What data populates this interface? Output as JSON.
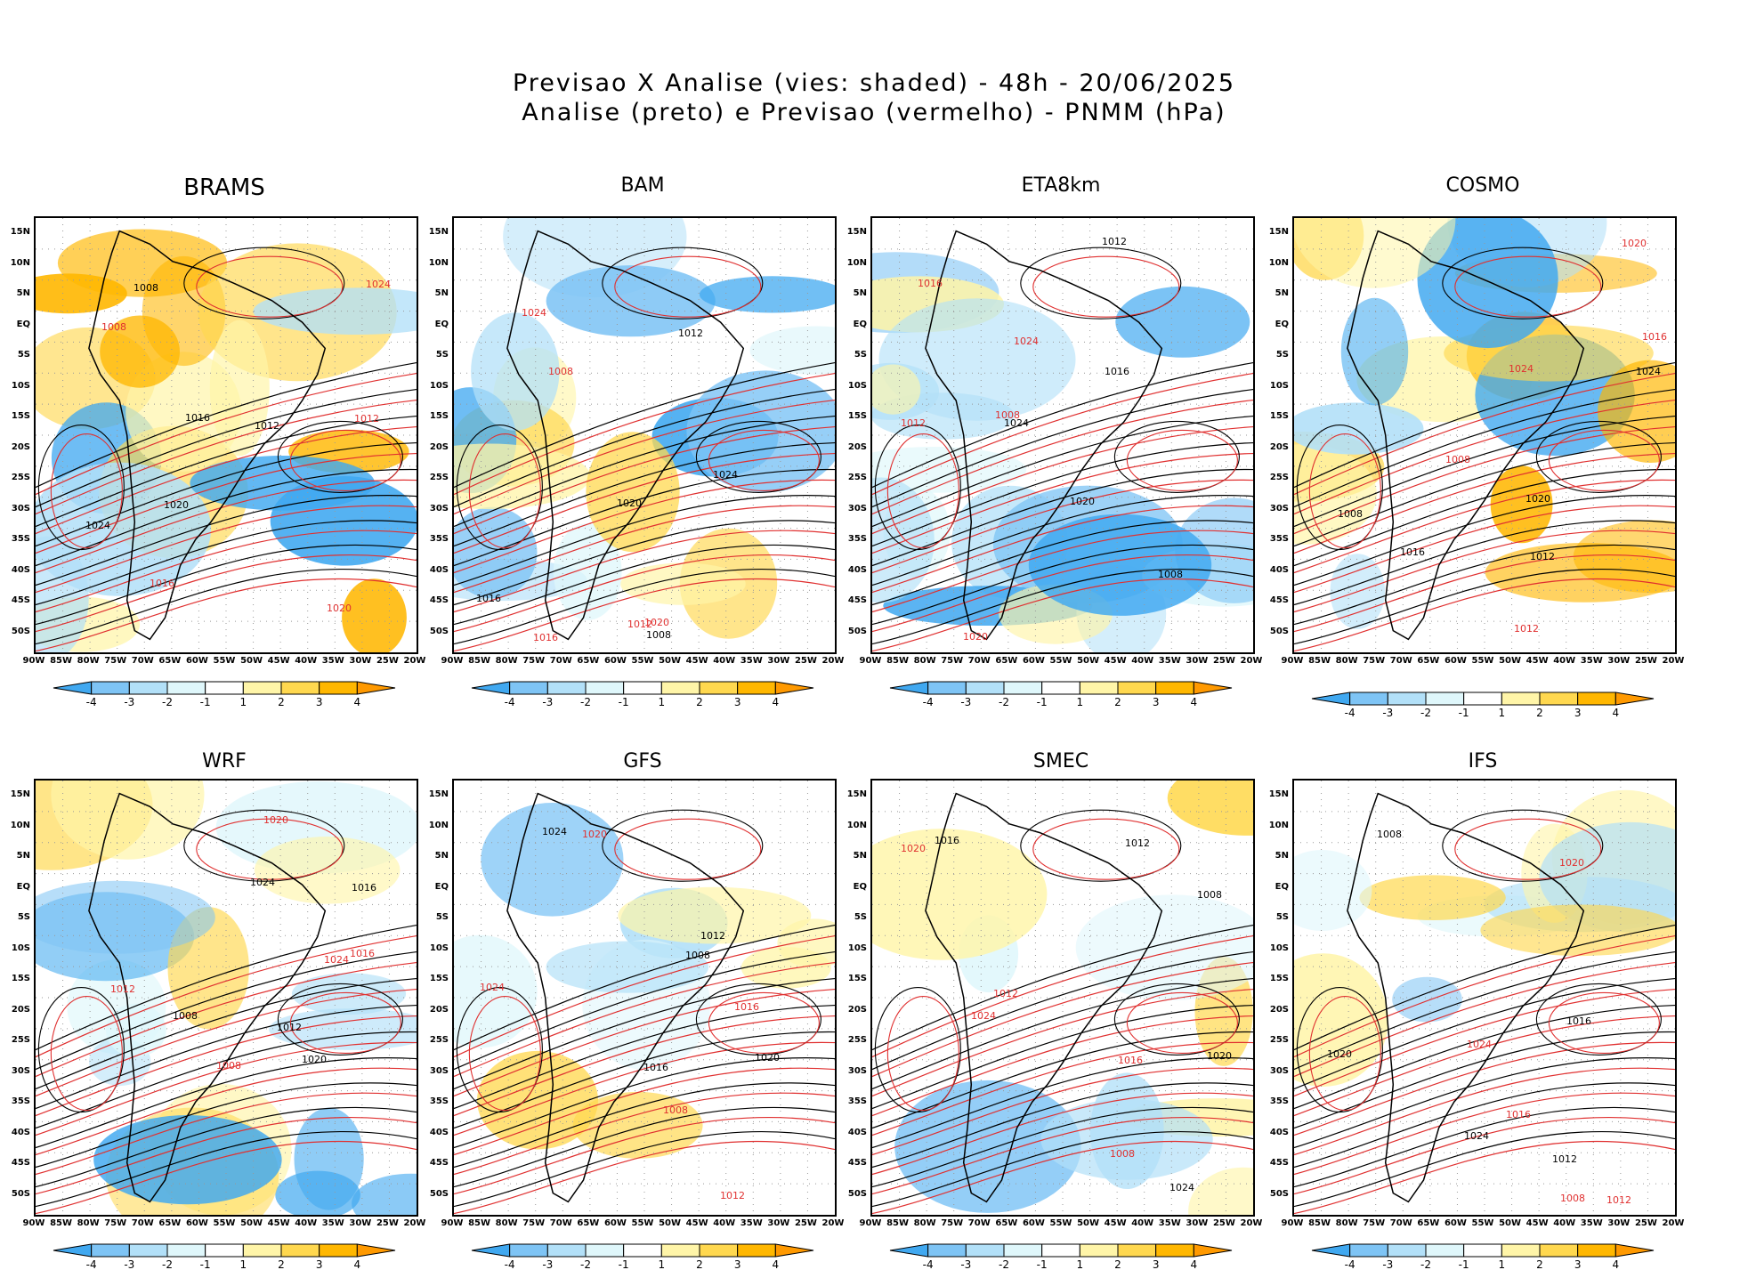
{
  "header": {
    "line1": "Previsao X Analise (vies: shaded) - 48h - 20/06/2025",
    "line2": "Analise (preto) e Previsao (vermelho) - PNMM (hPa)"
  },
  "models": [
    {
      "name": "BRAMS",
      "bias": "warm"
    },
    {
      "name": "BAM",
      "bias": "mixed"
    },
    {
      "name": "ETA8km",
      "bias": "cold"
    },
    {
      "name": "COSMO",
      "bias": "warm"
    },
    {
      "name": "WRF",
      "bias": "mixed"
    },
    {
      "name": "GFS",
      "bias": "light"
    },
    {
      "name": "SMEC",
      "bias": "light"
    },
    {
      "name": "IFS",
      "bias": "light"
    }
  ],
  "lat_labels": [
    "15N",
    "10N",
    "5N",
    "EQ",
    "5S",
    "10S",
    "15S",
    "20S",
    "25S",
    "30S",
    "35S",
    "40S",
    "45S",
    "50S"
  ],
  "lon_labels": [
    "90W",
    "85W",
    "80W",
    "75W",
    "70W",
    "65W",
    "60W",
    "55W",
    "50W",
    "45W",
    "40W",
    "35W",
    "30W",
    "25W",
    "20W"
  ],
  "colorbar": {
    "labels": [
      "-4",
      "-3",
      "-2",
      "-1",
      "1",
      "2",
      "3",
      "4"
    ],
    "colors": [
      "#40a8f0",
      "#7ec4f5",
      "#b2e0f8",
      "#dff7fb",
      "#ffffff",
      "#fff5a8",
      "#ffd84f",
      "#ffb700",
      "#ff9900"
    ]
  },
  "isobars": {
    "analysis_color": "#000000",
    "forecast_color": "#e03030",
    "values": [
      "1008",
      "1012",
      "1016",
      "1020",
      "1024"
    ]
  }
}
